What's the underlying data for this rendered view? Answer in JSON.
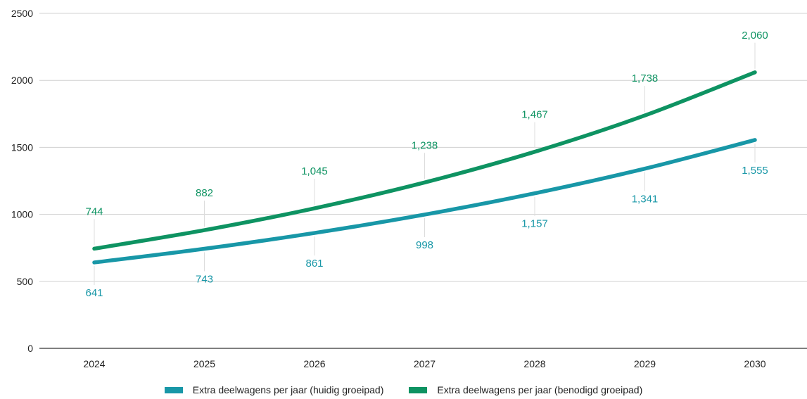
{
  "chart_data": {
    "type": "line",
    "categories": [
      "2024",
      "2025",
      "2026",
      "2027",
      "2028",
      "2029",
      "2030"
    ],
    "series": [
      {
        "name": "Extra deelwagens per jaar (huidig groeipad)",
        "color": "#1897A7",
        "values": [
          641,
          743,
          861,
          998,
          1157,
          1341,
          1555
        ],
        "labels": [
          "641",
          "743",
          "861",
          "998",
          "1,157",
          "1,341",
          "1,555"
        ],
        "label_position": "below"
      },
      {
        "name": "Extra deelwagens per jaar (benodigd groeipad)",
        "color": "#0E9362",
        "values": [
          744,
          882,
          1045,
          1238,
          1467,
          1738,
          2060
        ],
        "labels": [
          "744",
          "882",
          "1,045",
          "1,238",
          "1,467",
          "1,738",
          "2,060"
        ],
        "label_position": "above"
      }
    ],
    "yticks": [
      0,
      500,
      1000,
      1500,
      2000,
      2500
    ],
    "ylim": [
      0,
      2500
    ],
    "grid": true,
    "legend_position": "bottom-center",
    "title": "",
    "xlabel": "",
    "ylabel": ""
  }
}
